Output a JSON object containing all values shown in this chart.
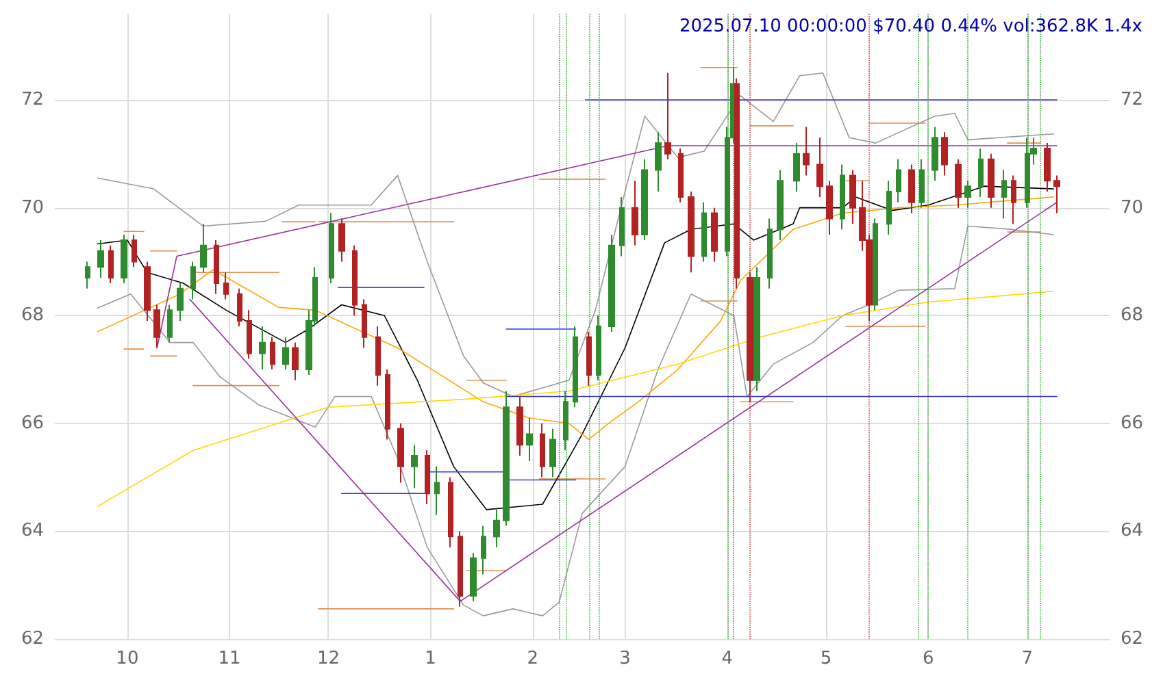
{
  "chart_data": {
    "type": "candlestick",
    "title": "2025.07.10 00:00:00 $70.40 0.44% vol:362.8K 1.4x",
    "x": [
      "2024-09-19",
      "2024-09-23",
      "2024-09-26",
      "2024-09-30",
      "2024-10-03",
      "2024-10-07",
      "2024-10-10",
      "2024-10-14",
      "2024-10-17",
      "2024-10-21",
      "2024-10-24",
      "2024-10-28",
      "2024-10-31",
      "2024-11-04",
      "2024-11-07",
      "2024-11-11",
      "2024-11-14",
      "2024-11-18",
      "2024-11-21",
      "2024-11-25",
      "2024-11-27",
      "2024-12-02",
      "2024-12-05",
      "2024-12-09",
      "2024-12-12",
      "2024-12-16",
      "2024-12-19",
      "2024-12-23",
      "2024-12-27",
      "2024-12-31",
      "2025-01-03",
      "2025-01-07",
      "2025-01-10",
      "2025-01-14",
      "2025-01-17",
      "2025-01-21",
      "2025-01-24",
      "2025-01-28",
      "2025-01-31",
      "2025-02-04",
      "2025-02-07",
      "2025-02-11",
      "2025-02-14",
      "2025-02-18",
      "2025-02-21",
      "2025-02-25",
      "2025-02-28",
      "2025-03-04",
      "2025-03-07",
      "2025-03-11",
      "2025-03-14",
      "2025-03-18",
      "2025-03-21",
      "2025-03-25",
      "2025-03-28",
      "2025-04-01",
      "2025-04-03",
      "2025-04-04",
      "2025-04-08",
      "2025-04-10",
      "2025-04-14",
      "2025-04-17",
      "2025-04-22",
      "2025-04-25",
      "2025-04-29",
      "2025-05-02",
      "2025-05-06",
      "2025-05-09",
      "2025-05-12",
      "2025-05-14",
      "2025-05-16",
      "2025-05-20",
      "2025-05-23",
      "2025-05-27",
      "2025-05-30",
      "2025-06-03",
      "2025-06-06",
      "2025-06-10",
      "2025-06-13",
      "2025-06-17",
      "2025-06-20",
      "2025-06-24",
      "2025-06-27",
      "2025-07-01",
      "2025-07-03",
      "2025-07-07",
      "2025-07-10"
    ],
    "ohlc": [
      [
        68.7,
        69.0,
        68.5,
        68.9
      ],
      [
        68.9,
        69.4,
        68.7,
        69.2
      ],
      [
        69.2,
        69.3,
        68.6,
        68.7
      ],
      [
        68.7,
        69.5,
        68.6,
        69.4
      ],
      [
        69.4,
        69.5,
        68.9,
        69.0
      ],
      [
        68.9,
        69.0,
        67.9,
        68.1
      ],
      [
        68.1,
        68.2,
        67.4,
        67.6
      ],
      [
        67.6,
        68.2,
        67.5,
        68.1
      ],
      [
        68.1,
        68.6,
        67.9,
        68.5
      ],
      [
        68.5,
        69.0,
        68.3,
        68.9
      ],
      [
        68.9,
        69.7,
        68.8,
        69.3
      ],
      [
        69.3,
        69.4,
        68.4,
        68.6
      ],
      [
        68.6,
        68.8,
        68.3,
        68.4
      ],
      [
        68.4,
        68.5,
        67.8,
        67.9
      ],
      [
        67.9,
        68.1,
        67.2,
        67.3
      ],
      [
        67.3,
        67.8,
        67.0,
        67.5
      ],
      [
        67.5,
        67.6,
        67.0,
        67.1
      ],
      [
        67.1,
        67.6,
        67.0,
        67.4
      ],
      [
        67.4,
        67.5,
        66.8,
        67.0
      ],
      [
        67.0,
        68.1,
        66.9,
        67.9
      ],
      [
        67.9,
        68.9,
        67.8,
        68.7
      ],
      [
        68.7,
        69.9,
        68.6,
        69.7
      ],
      [
        69.7,
        69.8,
        69.0,
        69.2
      ],
      [
        69.2,
        69.3,
        68.0,
        68.2
      ],
      [
        68.2,
        68.3,
        67.4,
        67.6
      ],
      [
        67.6,
        67.8,
        66.7,
        66.9
      ],
      [
        66.9,
        67.0,
        65.7,
        65.9
      ],
      [
        65.9,
        66.0,
        64.9,
        65.2
      ],
      [
        65.2,
        65.6,
        64.8,
        65.4
      ],
      [
        65.4,
        65.5,
        64.5,
        64.7
      ],
      [
        64.7,
        65.2,
        64.3,
        64.9
      ],
      [
        64.9,
        65.0,
        63.7,
        63.9
      ],
      [
        63.9,
        64.0,
        62.6,
        62.8
      ],
      [
        62.8,
        63.6,
        62.7,
        63.5
      ],
      [
        63.5,
        64.1,
        63.2,
        63.9
      ],
      [
        63.9,
        64.4,
        63.7,
        64.2
      ],
      [
        64.2,
        66.6,
        64.1,
        66.3
      ],
      [
        66.3,
        66.5,
        65.4,
        65.6
      ],
      [
        65.6,
        66.1,
        65.3,
        65.8
      ],
      [
        65.8,
        66.0,
        65.0,
        65.2
      ],
      [
        65.2,
        65.9,
        65.0,
        65.7
      ],
      [
        65.7,
        66.6,
        65.5,
        66.4
      ],
      [
        66.4,
        67.8,
        66.3,
        67.6
      ],
      [
        67.6,
        67.7,
        66.7,
        66.9
      ],
      [
        66.9,
        68.0,
        66.8,
        67.8
      ],
      [
        67.8,
        69.5,
        67.7,
        69.3
      ],
      [
        69.3,
        70.2,
        69.1,
        70.0
      ],
      [
        70.0,
        70.5,
        69.3,
        69.5
      ],
      [
        69.5,
        70.9,
        69.4,
        70.7
      ],
      [
        70.7,
        71.4,
        70.3,
        71.2
      ],
      [
        71.2,
        72.5,
        70.9,
        71.0
      ],
      [
        71.0,
        71.1,
        70.1,
        70.2
      ],
      [
        70.2,
        70.3,
        68.8,
        69.1
      ],
      [
        69.1,
        70.1,
        69.0,
        69.9
      ],
      [
        69.9,
        70.0,
        69.0,
        69.2
      ],
      [
        69.2,
        71.5,
        69.1,
        71.3
      ],
      [
        71.3,
        72.6,
        71.2,
        72.3
      ],
      [
        72.3,
        72.4,
        68.5,
        68.7
      ],
      [
        68.7,
        68.8,
        66.4,
        66.8
      ],
      [
        66.8,
        68.9,
        66.6,
        68.7
      ],
      [
        68.7,
        69.8,
        68.5,
        69.6
      ],
      [
        69.6,
        70.7,
        69.4,
        70.5
      ],
      [
        70.5,
        71.2,
        70.3,
        71.0
      ],
      [
        71.0,
        71.5,
        70.6,
        70.8
      ],
      [
        70.8,
        71.3,
        70.2,
        70.4
      ],
      [
        70.4,
        70.5,
        69.5,
        69.8
      ],
      [
        69.8,
        70.8,
        69.6,
        70.6
      ],
      [
        70.6,
        70.7,
        69.7,
        70.0
      ],
      [
        70.0,
        70.5,
        69.2,
        69.4
      ],
      [
        69.4,
        69.5,
        67.9,
        68.2
      ],
      [
        68.2,
        69.8,
        68.1,
        69.7
      ],
      [
        69.7,
        70.5,
        69.5,
        70.3
      ],
      [
        70.3,
        70.9,
        70.1,
        70.7
      ],
      [
        70.7,
        70.8,
        69.9,
        70.1
      ],
      [
        70.1,
        70.9,
        70.0,
        70.7
      ],
      [
        70.7,
        71.5,
        70.5,
        71.3
      ],
      [
        71.3,
        71.4,
        70.6,
        70.8
      ],
      [
        70.8,
        70.9,
        70.0,
        70.2
      ],
      [
        70.2,
        70.5,
        70.0,
        70.4
      ],
      [
        70.4,
        71.1,
        70.2,
        70.9
      ],
      [
        70.9,
        71.0,
        70.0,
        70.2
      ],
      [
        70.2,
        70.7,
        69.8,
        70.5
      ],
      [
        70.5,
        70.6,
        69.7,
        70.1
      ],
      [
        70.1,
        71.3,
        70.0,
        71.0
      ],
      [
        71.0,
        71.3,
        70.8,
        71.1
      ],
      [
        71.1,
        71.2,
        70.3,
        70.5
      ],
      [
        70.5,
        70.6,
        69.9,
        70.4
      ]
    ],
    "series": [
      {
        "type": "line",
        "color": "#e09050",
        "x": [
          "2024-09-30",
          "2024-10-06"
        ],
        "values": [
          69.56,
          69.56
        ]
      },
      {
        "type": "line",
        "color": "#e09050",
        "x": [
          "2024-09-30",
          "2024-10-06"
        ],
        "values": [
          67.38,
          67.38
        ]
      },
      {
        "type": "line",
        "color": "#e09050",
        "x": [
          "2024-10-08",
          "2024-10-16"
        ],
        "values": [
          69.2,
          69.2
        ]
      },
      {
        "type": "line",
        "color": "#e09050",
        "x": [
          "2024-10-08",
          "2024-10-16"
        ],
        "values": [
          67.25,
          67.25
        ]
      },
      {
        "type": "line",
        "color": "#e09050",
        "x": [
          "2024-10-21",
          "2024-11-16"
        ],
        "values": [
          68.8,
          68.8
        ]
      },
      {
        "type": "line",
        "color": "#e09050",
        "x": [
          "2024-10-21",
          "2024-11-16"
        ],
        "values": [
          66.7,
          66.7
        ]
      },
      {
        "type": "line",
        "color": "#e09050",
        "x": [
          "2024-11-17",
          "2024-11-27"
        ],
        "values": [
          69.74,
          69.74
        ]
      },
      {
        "type": "line",
        "color": "#e09050",
        "x": [
          "2024-11-28",
          "2025-01-08"
        ],
        "values": [
          69.74,
          69.74
        ]
      },
      {
        "type": "line",
        "color": "#e09050",
        "x": [
          "2024-11-28",
          "2025-01-08"
        ],
        "values": [
          62.56,
          62.56
        ]
      },
      {
        "type": "line",
        "color": "#e09050",
        "x": [
          "2025-01-12",
          "2025-01-24"
        ],
        "values": [
          66.8,
          66.8
        ]
      },
      {
        "type": "line",
        "color": "#e09050",
        "x": [
          "2025-01-12",
          "2025-01-24"
        ],
        "values": [
          63.27,
          63.27
        ]
      },
      {
        "type": "line",
        "color": "#e09050",
        "x": [
          "2025-02-03",
          "2025-02-23"
        ],
        "values": [
          70.53,
          70.53
        ]
      },
      {
        "type": "line",
        "color": "#e09050",
        "x": [
          "2025-02-03",
          "2025-02-23"
        ],
        "values": [
          64.97,
          64.97
        ]
      },
      {
        "type": "line",
        "color": "#e09050",
        "x": [
          "2025-03-24",
          "2025-04-04"
        ],
        "values": [
          72.6,
          72.6
        ]
      },
      {
        "type": "line",
        "color": "#e09050",
        "x": [
          "2025-03-24",
          "2025-04-04"
        ],
        "values": [
          68.27,
          68.27
        ]
      },
      {
        "type": "line",
        "color": "#e09050",
        "x": [
          "2025-04-08",
          "2025-04-21"
        ],
        "values": [
          71.52,
          71.52
        ]
      },
      {
        "type": "line",
        "color": "#e09050",
        "x": [
          "2025-04-05",
          "2025-04-21"
        ],
        "values": [
          66.4,
          66.4
        ]
      },
      {
        "type": "line",
        "color": "#e09050",
        "x": [
          "2025-05-07",
          "2025-05-14"
        ],
        "values": [
          70.5,
          70.5
        ]
      },
      {
        "type": "line",
        "color": "#e09050",
        "x": [
          "2025-05-14",
          "2025-05-31"
        ],
        "values": [
          71.57,
          71.57
        ]
      },
      {
        "type": "line",
        "color": "#e09050",
        "x": [
          "2025-05-07",
          "2025-05-31"
        ],
        "values": [
          67.8,
          67.8
        ]
      },
      {
        "type": "line",
        "color": "#e09050",
        "x": [
          "2025-06-25",
          "2025-07-05"
        ],
        "values": [
          71.2,
          71.2
        ]
      },
      {
        "type": "line",
        "color": "#e09050",
        "x": [
          "2025-06-25",
          "2025-07-05"
        ],
        "values": [
          69.55,
          69.55
        ]
      },
      {
        "type": "line",
        "color": "#999999",
        "x": [
          "2024-09-22",
          "2024-10-09",
          "2024-10-24",
          "2024-11-12",
          "2024-11-22",
          "2024-12-14",
          "2024-12-22",
          "2024-12-31",
          "2025-01-11",
          "2025-01-17",
          "2025-01-26",
          "2025-02-12",
          "2025-02-20",
          "2025-03-01",
          "2025-03-07",
          "2025-03-17",
          "2025-03-25",
          "2025-04-05",
          "2025-04-15",
          "2025-04-23",
          "2025-04-30",
          "2025-05-08",
          "2025-05-16",
          "2025-06-03",
          "2025-06-09",
          "2025-06-13",
          "2025-07-09"
        ],
        "values": [
          70.55,
          70.35,
          69.66,
          69.75,
          70.05,
          70.05,
          70.6,
          69.0,
          67.25,
          66.75,
          66.5,
          66.8,
          68.1,
          70.3,
          71.7,
          70.93,
          71.05,
          72.08,
          71.6,
          72.45,
          72.5,
          71.3,
          71.2,
          71.7,
          71.75,
          71.26,
          71.37
        ]
      },
      {
        "type": "line",
        "color": "#999999",
        "x": [
          "2024-09-22",
          "2024-10-02",
          "2024-10-14",
          "2024-10-21",
          "2024-10-29",
          "2024-11-10",
          "2024-11-27",
          "2024-12-03",
          "2024-12-14",
          "2024-12-22",
          "2024-12-31",
          "2025-01-11",
          "2025-01-17",
          "2025-01-26",
          "2025-02-04",
          "2025-02-09",
          "2025-02-16",
          "2025-03-01",
          "2025-03-11",
          "2025-03-21",
          "2025-04-03",
          "2025-04-07",
          "2025-04-15",
          "2025-04-27",
          "2025-05-06",
          "2025-05-14",
          "2025-05-23",
          "2025-06-09",
          "2025-06-13",
          "2025-06-26",
          "2025-07-09"
        ],
        "values": [
          68.14,
          68.4,
          67.5,
          67.5,
          66.87,
          66.34,
          65.93,
          66.5,
          66.5,
          65.35,
          63.7,
          62.63,
          62.43,
          62.56,
          62.43,
          62.68,
          64.33,
          65.2,
          67.0,
          68.4,
          68.0,
          66.5,
          67.1,
          67.5,
          68.0,
          68.2,
          68.47,
          68.5,
          69.66,
          69.6,
          69.5
        ]
      },
      {
        "type": "line",
        "color": "#000000",
        "x": [
          "2024-09-22",
          "2024-10-01",
          "2024-10-07",
          "2024-10-18",
          "2024-10-31",
          "2024-11-18",
          "2024-11-25",
          "2024-12-05",
          "2024-12-18",
          "2024-12-28",
          "2025-01-08",
          "2025-01-18",
          "2025-02-04",
          "2025-02-16",
          "2025-03-01",
          "2025-03-13",
          "2025-03-21",
          "2025-04-03",
          "2025-04-09",
          "2025-04-21",
          "2025-04-23",
          "2025-05-06",
          "2025-05-10",
          "2025-05-21",
          "2025-06-01",
          "2025-06-18",
          "2025-07-09"
        ],
        "values": [
          69.33,
          69.4,
          68.8,
          68.6,
          68.1,
          67.5,
          67.75,
          68.2,
          68.0,
          66.8,
          65.2,
          64.4,
          64.5,
          65.8,
          67.4,
          69.35,
          69.6,
          69.7,
          69.4,
          69.7,
          70.0,
          70.0,
          70.2,
          69.95,
          70.05,
          70.4,
          70.35
        ]
      },
      {
        "type": "line",
        "color": "#ffa500",
        "x": [
          "2024-09-22",
          "2024-10-17",
          "2024-10-27",
          "2024-11-16",
          "2024-11-27",
          "2024-12-22",
          "2025-01-04",
          "2025-01-17",
          "2025-01-31",
          "2025-02-12",
          "2025-02-18",
          "2025-02-24",
          "2025-03-05",
          "2025-03-17",
          "2025-03-30",
          "2025-04-05",
          "2025-04-11",
          "2025-04-21",
          "2025-05-06",
          "2025-05-23",
          "2025-06-09",
          "2025-07-09"
        ],
        "values": [
          67.7,
          68.4,
          68.85,
          68.15,
          68.1,
          67.4,
          66.9,
          66.4,
          66.1,
          66.0,
          65.7,
          66.0,
          66.4,
          67.0,
          67.9,
          68.65,
          69.0,
          69.6,
          69.9,
          70.0,
          70.05,
          70.2
        ]
      },
      {
        "type": "line",
        "color": "#ffd700",
        "x": [
          "2024-09-22",
          "2024-10-21",
          "2024-12-01",
          "2025-01-12",
          "2025-02-12",
          "2025-03-17",
          "2025-04-11",
          "2025-05-06",
          "2025-06-01",
          "2025-07-09"
        ],
        "values": [
          64.46,
          65.5,
          66.3,
          66.45,
          66.6,
          67.1,
          67.6,
          68.0,
          68.25,
          68.45
        ]
      },
      {
        "type": "line",
        "color": "#993399",
        "x": [
          "2024-10-10",
          "2024-10-16",
          "2025-03-14",
          "2025-07-10"
        ],
        "values": [
          67.4,
          69.1,
          71.15,
          71.15
        ]
      },
      {
        "type": "line",
        "color": "#993399",
        "x": [
          "2024-10-20",
          "2025-01-10",
          "2025-07-10"
        ],
        "values": [
          68.3,
          62.7,
          70.1
        ]
      },
      {
        "type": "line",
        "color": "#3333cc",
        "x": [
          "2025-02-17",
          "2025-07-10"
        ],
        "values": [
          72.0,
          72.0
        ]
      },
      {
        "type": "line",
        "color": "#3333cc",
        "x": [
          "2025-01-24",
          "2025-07-10"
        ],
        "values": [
          66.5,
          66.5
        ]
      },
      {
        "type": "line",
        "color": "#3333ff",
        "x": [
          "2024-12-04",
          "2024-12-30"
        ],
        "values": [
          68.52,
          68.52
        ]
      },
      {
        "type": "line",
        "color": "#3333ff",
        "x": [
          "2024-12-05",
          "2024-12-31"
        ],
        "values": [
          64.7,
          64.7
        ]
      },
      {
        "type": "line",
        "color": "#3333ff",
        "x": [
          "2024-12-31",
          "2025-01-23"
        ],
        "values": [
          65.1,
          65.1
        ]
      },
      {
        "type": "line",
        "color": "#3333ff",
        "x": [
          "2025-01-24",
          "2025-02-14"
        ],
        "values": [
          67.75,
          67.75
        ]
      },
      {
        "type": "line",
        "color": "#3333ff",
        "x": [
          "2025-01-24",
          "2025-02-14"
        ],
        "values": [
          64.95,
          64.95
        ]
      }
    ],
    "ref_lines": [
      {
        "axis": "x",
        "value": "2025-02-09",
        "color": "#33aa33",
        "line_style": "dotted"
      },
      {
        "axis": "x",
        "value": "2025-02-11",
        "color": "#33aa33",
        "line_style": "dotted"
      },
      {
        "axis": "x",
        "value": "2025-02-18",
        "color": "#33aa33",
        "line_style": "dotted"
      },
      {
        "axis": "x",
        "value": "2025-02-21",
        "color": "#33aa33",
        "line_style": "dotted"
      },
      {
        "axis": "x",
        "value": "2025-04-01",
        "color": "#33aa33",
        "line_style": "dotted"
      },
      {
        "axis": "x",
        "value": "2025-04-03",
        "color": "#cc3333",
        "line_style": "dotted"
      },
      {
        "axis": "x",
        "value": "2025-04-08",
        "color": "#cc3333",
        "line_style": "dotted"
      },
      {
        "axis": "x",
        "value": "2025-05-14",
        "color": "#cc3333",
        "line_style": "dotted"
      },
      {
        "axis": "x",
        "value": "2025-05-29",
        "color": "#33aa33",
        "line_style": "dotted"
      },
      {
        "axis": "x",
        "value": "2025-06-01",
        "color": "#33aa33",
        "line_style": "dotted"
      },
      {
        "axis": "x",
        "value": "2025-06-13",
        "color": "#33aa33",
        "line_style": "dotted"
      },
      {
        "axis": "x",
        "value": "2025-07-01",
        "color": "#33aa33",
        "line_style": "dotted"
      },
      {
        "axis": "x",
        "value": "2025-07-05",
        "color": "#33aa33",
        "line_style": "dotted"
      }
    ],
    "xlim": [
      "2024-09-09",
      "2025-07-26"
    ],
    "xticks": [
      {
        "value": "2024-10-01",
        "label": "10"
      },
      {
        "value": "2024-11-01",
        "label": "11"
      },
      {
        "value": "2024-12-01",
        "label": "12"
      },
      {
        "value": "2025-01-01",
        "label": "1"
      },
      {
        "value": "2025-02-01",
        "label": "2"
      },
      {
        "value": "2025-03-01",
        "label": "3"
      },
      {
        "value": "2025-04-01",
        "label": "4"
      },
      {
        "value": "2025-05-01",
        "label": "5"
      },
      {
        "value": "2025-06-01",
        "label": "6"
      },
      {
        "value": "2025-07-01",
        "label": "7"
      }
    ],
    "ylim": [
      62,
      73.6
    ],
    "yticks": [
      62,
      64,
      66,
      68,
      70,
      72
    ],
    "y2lim": [
      62,
      73.6
    ],
    "y2ticks": [
      62,
      64,
      66,
      68,
      70,
      72
    ],
    "grid": true
  }
}
